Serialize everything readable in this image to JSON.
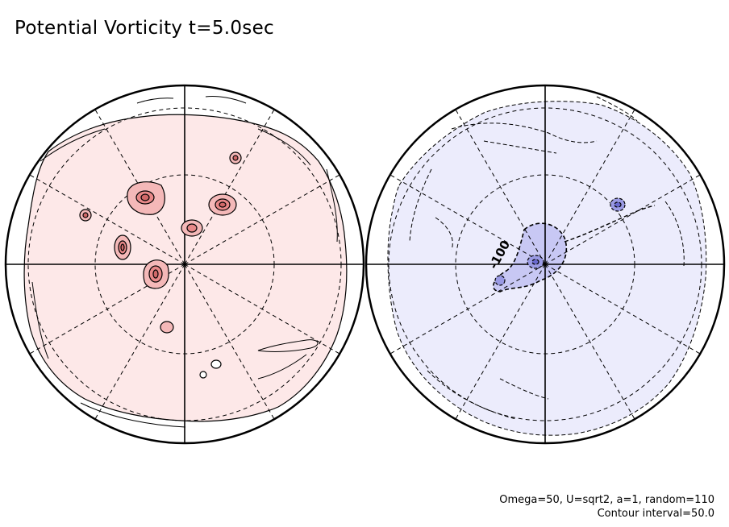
{
  "title": "Potential Vorticity t=5.0sec",
  "params": {
    "line1": "Omega=50, U=sqrt2, a=1, random=110",
    "line2": "Contour interval=50.0"
  },
  "contour_label": "-100",
  "colors": {
    "positive_fill": "#fde8e8",
    "positive_vortex": "#f4b8b8",
    "positive_vortex_core": "#e88888",
    "negative_fill": "#ececfc",
    "negative_region": "#c8c8f4",
    "negative_core": "#9a9ae4",
    "line": "#000000"
  }
}
